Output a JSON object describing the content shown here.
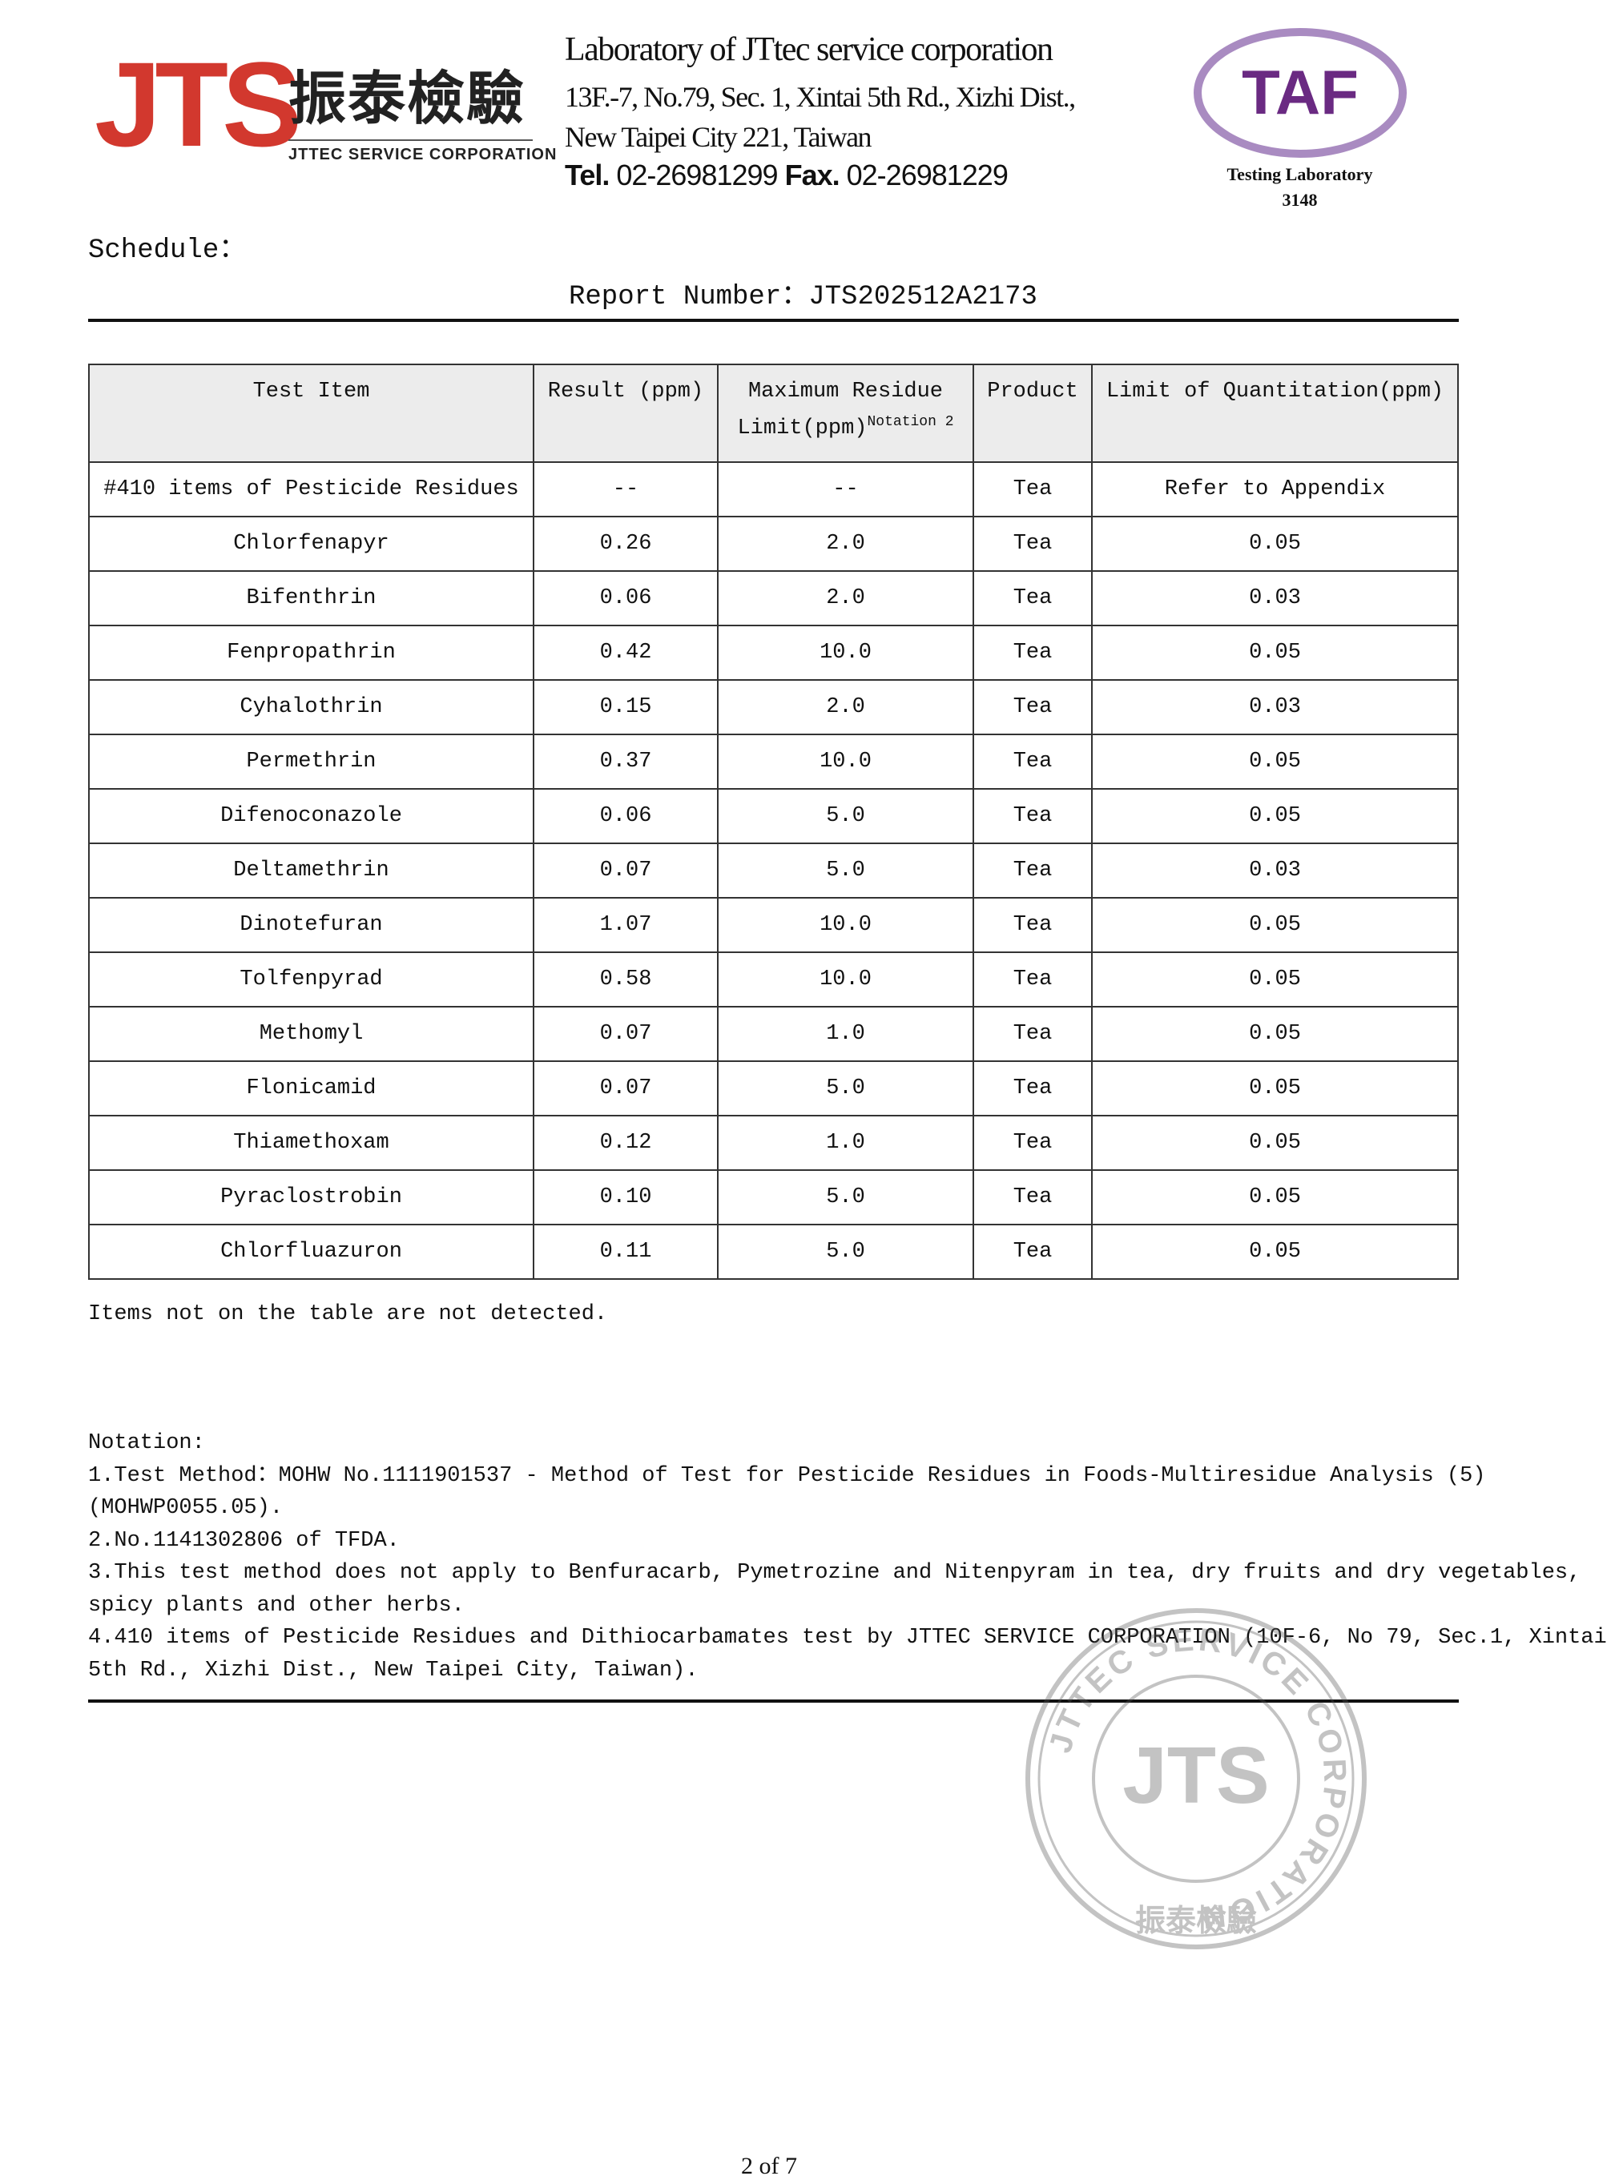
{
  "logo": {
    "mark": "JTS",
    "chinese": "振泰檢驗",
    "corporation": "JTTEC SERVICE CORPORATION",
    "brand_color": "#d2382e"
  },
  "lab": {
    "title": "Laboratory of JTtec service corporation",
    "address1": "13F.-7, No.79, Sec. 1, Xintai 5th Rd., Xizhi Dist.,",
    "address2": "New Taipei City 221, Taiwan",
    "tel_label": "Tel.",
    "tel": "02-26981299",
    "fax_label": "Fax.",
    "fax": "02-26981229"
  },
  "taf": {
    "logo_text": "TAF",
    "caption": "Testing Laboratory",
    "number": "3148",
    "color": "#6a2a82"
  },
  "schedule_label": "Schedule：",
  "report_number": "Report Number：JTS202512A2173",
  "table": {
    "headers": [
      "Test Item",
      "Result (ppm)",
      "Maximum Residue",
      "Limit(ppm)",
      "Notation 2",
      "Product",
      "Limit of Quantitation(ppm)"
    ],
    "rows": [
      [
        "#410 items of Pesticide Residues",
        "--",
        "--",
        "Tea",
        "Refer to Appendix"
      ],
      [
        "Chlorfenapyr",
        "0.26",
        "2.0",
        "Tea",
        "0.05"
      ],
      [
        "Bifenthrin",
        "0.06",
        "2.0",
        "Tea",
        "0.03"
      ],
      [
        "Fenpropathrin",
        "0.42",
        "10.0",
        "Tea",
        "0.05"
      ],
      [
        "Cyhalothrin",
        "0.15",
        "2.0",
        "Tea",
        "0.03"
      ],
      [
        "Permethrin",
        "0.37",
        "10.0",
        "Tea",
        "0.05"
      ],
      [
        "Difenoconazole",
        "0.06",
        "5.0",
        "Tea",
        "0.05"
      ],
      [
        "Deltamethrin",
        "0.07",
        "5.0",
        "Tea",
        "0.03"
      ],
      [
        "Dinotefuran",
        "1.07",
        "10.0",
        "Tea",
        "0.05"
      ],
      [
        "Tolfenpyrad",
        "0.58",
        "10.0",
        "Tea",
        "0.05"
      ],
      [
        "Methomyl",
        "0.07",
        "1.0",
        "Tea",
        "0.05"
      ],
      [
        "Flonicamid",
        "0.07",
        "5.0",
        "Tea",
        "0.05"
      ],
      [
        "Thiamethoxam",
        "0.12",
        "1.0",
        "Tea",
        "0.05"
      ],
      [
        "Pyraclostrobin",
        "0.10",
        "5.0",
        "Tea",
        "0.05"
      ],
      [
        "Chlorfluazuron",
        "0.11",
        "5.0",
        "Tea",
        "0.05"
      ]
    ]
  },
  "table_note": "Items not on the table are not detected.",
  "notation": {
    "title": "Notation:",
    "lines": [
      "1.Test Method：MOHW No.1111901537 - Method of Test for Pesticide Residues in Foods-Multiresidue Analysis (5)",
      "(MOHWP0055.05).",
      "2.No.1141302806 of TFDA.",
      "3.This test method does not apply to Benfuracarb, Pymetrozine and Nitenpyram in tea, dry fruits and dry vegetables,",
      "spicy plants and other herbs.",
      "4.410 items of Pesticide Residues and Dithiocarbamates test by JTTEC SERVICE CORPORATION (10F-6, No 79, Sec.1, Xintai",
      "5th Rd., Xizhi Dist., New Taipei City, Taiwan)."
    ]
  },
  "stamp": {
    "ring_text": "JTTEC SERVICE CORPORATION",
    "center": "JTS",
    "bottom": "振泰檢驗"
  },
  "page": "2 of 7"
}
